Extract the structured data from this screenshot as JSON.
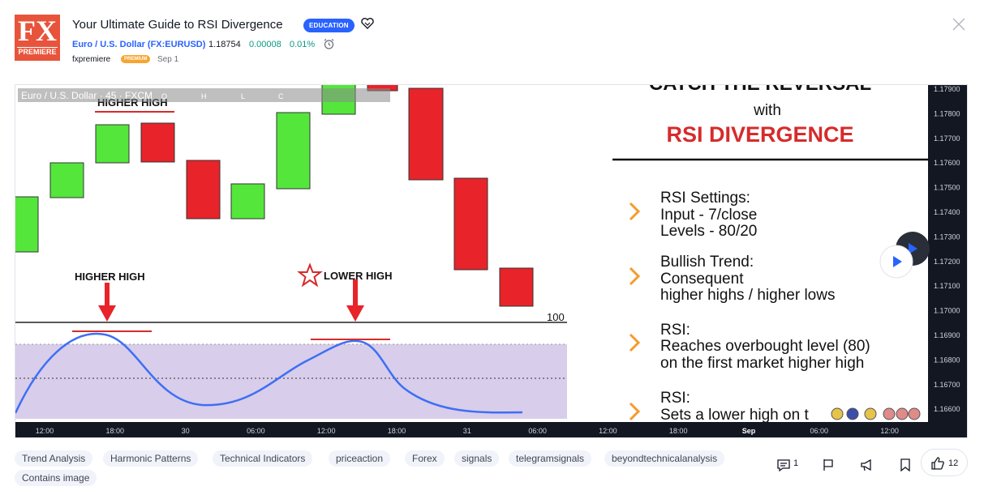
{
  "idea": {
    "logo_text": "FX",
    "logo_sub": "PREMIERE",
    "title": "Your Ultimate Guide to RSI Divergence",
    "badge": "EDUCATION",
    "symbol": "Euro / U.S. Dollar (FX:EURUSD)",
    "price": "1.18754",
    "change": "0.00008",
    "change_pct": "0.01%",
    "author": "fxpremiere",
    "author_badge": "PREMIUM",
    "date": "Sep 1"
  },
  "chart": {
    "legend_symbol": "Euro / U.S. Dollar · 45 · FXCM",
    "legend_o": "O",
    "legend_h": "H",
    "legend_l": "L",
    "legend_c": "C",
    "higher_high_top": "HIGHER HIGH",
    "higher_high_left": "HIGHER HIGH",
    "lower_high": "LOWER HIGH",
    "level_100": "100",
    "slide_title_1": "CATCH THE REVERSAL",
    "slide_title_2": "with",
    "slide_title_3": "RSI DIVERGENCE",
    "bullets": [
      [
        "RSI Settings:",
        "Input - 7/close",
        "Levels - 80/20"
      ],
      [
        "Bullish Trend:",
        "Consequent",
        "higher highs / higher lows"
      ],
      [
        "RSI:",
        "Reaches overbought level (80)",
        "on the first market higher high"
      ],
      [
        "RSI:",
        "Sets a lower high on t",
        ""
      ]
    ],
    "price_ticks": [
      "1.17900",
      "1.17800",
      "1.17700",
      "1.17600",
      "1.17500",
      "1.17400",
      "1.17300",
      "1.17200",
      "1.17100",
      "1.17000",
      "1.16900",
      "1.16800",
      "1.16700",
      "1.16600"
    ],
    "time_ticks": [
      "12:00",
      "18:00",
      "30",
      "06:00",
      "12:00",
      "18:00",
      "31",
      "06:00",
      "12:00",
      "18:00",
      "Sep",
      "06:00",
      "12:00"
    ],
    "bull_color": "#55e63c",
    "bear_color": "#e8232a",
    "rsi_fill": "#d8cdea",
    "rsi_line": "#3d6ff5",
    "accent_red": "#d62b2b"
  },
  "tags": [
    "Trend Analysis",
    "Harmonic Patterns",
    "Technical Indicators",
    "priceaction",
    "Forex",
    "signals",
    "telegramsignals",
    "beyondtechnicalanalysis",
    "Contains image"
  ],
  "actions": {
    "comments_count": "1",
    "likes_count": "12"
  }
}
